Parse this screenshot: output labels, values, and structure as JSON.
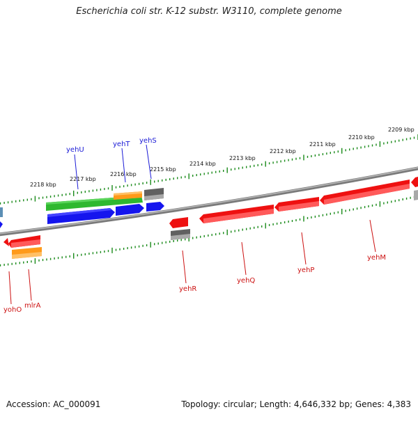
{
  "title": "Escherichia coli str. K-12 substr. W3110, complete genome",
  "footer": {
    "accession": "Accession: AC_000091",
    "topology": "Topology: circular; Length: 4,646,332 bp; Genes: 4,383"
  },
  "ruler_labels": [
    "2218 kbp",
    "2217 kbp",
    "2216 kbp",
    "2215 kbp",
    "2214 kbp",
    "2213 kbp",
    "2212 kbp",
    "2211 kbp",
    "2210 kbp",
    "2209 kbp"
  ],
  "genes_top": [
    "yehU",
    "yehT",
    "yehS"
  ],
  "genes_bottom": [
    "yohO",
    "mlrA",
    "yehR",
    "yehQ",
    "yehP",
    "yehM"
  ],
  "colors": {
    "ruler": "#1a8a1a",
    "forward_strand": "#0000ee",
    "reverse_strand": "#ee1111",
    "green_feature": "#33bb33",
    "orange_feature": "#ff9911",
    "gray_feature": "#666666",
    "steel_feature": "#5588aa",
    "backbone": "#888888"
  }
}
